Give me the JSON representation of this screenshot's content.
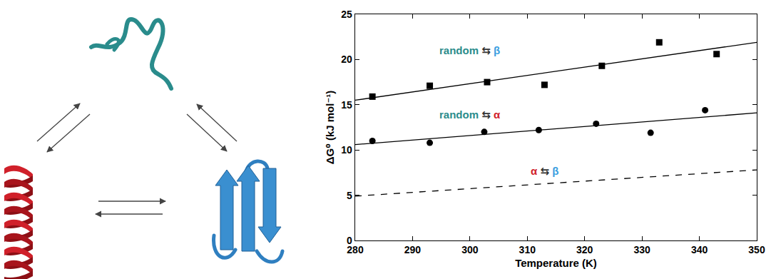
{
  "chart_data": {
    "type": "scatter",
    "x_label": "Temperature (K)",
    "y_label": "ΔG⁰ (kJ mol⁻¹)",
    "xlim": [
      280,
      350
    ],
    "xticks": [
      280,
      290,
      300,
      310,
      320,
      330,
      340,
      350
    ],
    "ylim": [
      0,
      25
    ],
    "yticks": [
      0,
      5,
      10,
      15,
      20,
      25
    ],
    "grid": false,
    "series": [
      {
        "type": "scatter",
        "marker": "square",
        "color": "#000000",
        "x": [
          283,
          293,
          303,
          313,
          323,
          333,
          343
        ],
        "values": [
          15.9,
          17.1,
          17.5,
          17.2,
          19.3,
          21.9,
          20.6
        ]
      },
      {
        "type": "scatter",
        "marker": "circle",
        "color": "#000000",
        "x": [
          283,
          293,
          302.5,
          312,
          322,
          331.5,
          341
        ],
        "values": [
          11.0,
          10.8,
          12.0,
          12.2,
          12.9,
          11.9,
          14.4
        ]
      },
      {
        "type": "line",
        "line_style": "solid",
        "color": "#000000",
        "x": [
          280,
          350
        ],
        "values": [
          15.5,
          21.9
        ]
      },
      {
        "type": "line",
        "line_style": "solid",
        "color": "#000000",
        "x": [
          280,
          350
        ],
        "values": [
          10.6,
          14.1
        ]
      },
      {
        "type": "line",
        "line_style": "dash",
        "color": "#000000",
        "x": [
          280,
          350
        ],
        "values": [
          4.9,
          7.8
        ]
      }
    ],
    "annotations": [
      {
        "x": 300,
        "y": 21.0,
        "parts": [
          {
            "text": "random",
            "color": "#2a8c8c"
          },
          {
            "text": "⇆",
            "color": "#333333"
          },
          {
            "text": "β",
            "color": "#3a9ee0"
          }
        ]
      },
      {
        "x": 300,
        "y": 13.9,
        "parts": [
          {
            "text": "random",
            "color": "#2a8c8c"
          },
          {
            "text": "⇆",
            "color": "#333333"
          },
          {
            "text": "α",
            "color": "#d0202a"
          }
        ]
      },
      {
        "x": 313,
        "y": 7.7,
        "parts": [
          {
            "text": "α",
            "color": "#d0202a"
          },
          {
            "text": "⇆",
            "color": "#333333"
          },
          {
            "text": "β",
            "color": "#3a9ee0"
          }
        ]
      }
    ]
  }
}
